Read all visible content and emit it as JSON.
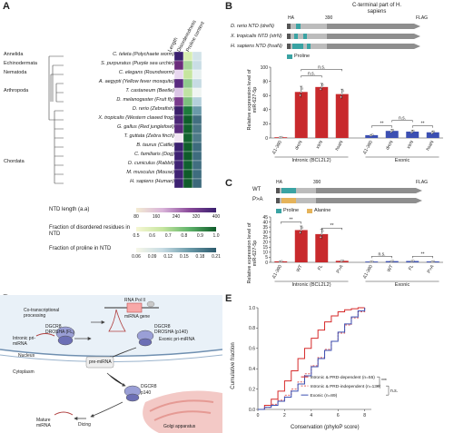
{
  "panels": {
    "A": "A",
    "B": "B",
    "C": "C",
    "D": "D",
    "E": "E"
  },
  "panelA": {
    "col_headers": [
      "Length",
      "Disorderedness",
      "Proline content"
    ],
    "phyla": [
      "Annelida",
      "Echinodermata",
      "Nematoda",
      "Arthropoda",
      "",
      "Chordata"
    ],
    "species": [
      "C. teleta (Polychaete worm)",
      "S. purpuratus (Purple sea urchin)",
      "C. elegans (Roundworm)",
      "A. aegypti (Yellow fever mosquito)",
      "T. castaneum (Beetle)",
      "D. melanogaster (Fruit fly)",
      "D. rerio (Zebrafish)",
      "X. tropicalis (Western clawed frog)",
      "G. gallus (Red junglefowl)",
      "T. guttata (Zebra finch)",
      "B. taurus (Cattle)",
      "C. familiaris (Dog)",
      "O. cuniculus (Rabbit)",
      "M. musculus (Mouse)",
      "H. sapiens (Human)"
    ],
    "heat": {
      "length": [
        "#3a1f6e",
        "#6b2c7c",
        "#e8d7ef",
        "#5a2a80",
        "#dcc6e6",
        "#7a3b8c",
        "#3b1f6a",
        "#4a2675",
        "#5a2b7d",
        "#f2e6f4",
        "#3b2070",
        "#3d2172",
        "#3e2273",
        "#3f2273",
        "#3d2172"
      ],
      "disorder": [
        "#d7edb0",
        "#a7d59a",
        "#c6e59f",
        "#8fca8d",
        "#bfe2a3",
        "#7dbf7e",
        "#1d7a3c",
        "#0f5e2b",
        "#11612d",
        "#136430",
        "#0f5e2b",
        "#0f5b2a",
        "#106030",
        "#0f5b2a",
        "#0f5b2a"
      ],
      "proline": [
        "#d2e3e8",
        "#c9dde5",
        "#e7f0f0",
        "#c6dbe3",
        "#f0f5f2",
        "#b4d0db",
        "#6a9aa9",
        "#426f80",
        "#4a7785",
        "#4d7a88",
        "#3d6b7d",
        "#3e6c7e",
        "#416e80",
        "#3e6c7e",
        "#3c697b"
      ]
    },
    "legend_length_title": "NTD length (a.a)",
    "legend_length_ticks": [
      "80",
      "160",
      "240",
      "320",
      "400"
    ],
    "legend_disorder_title": "Fraction of disordered residues in NTD",
    "legend_disorder_ticks": [
      "0.5",
      "0.6",
      "0.7",
      "0.8",
      "0.9",
      "1.0"
    ],
    "legend_proline_title": "Fraction of proline in NTD",
    "legend_proline_ticks": [
      "0.06",
      "0.09",
      "0.12",
      "0.15",
      "0.18",
      "0.21"
    ]
  },
  "panelB": {
    "header": "C-terminal part of H. sapiens",
    "ha": "HA",
    "flag": "FLAG",
    "tick_390": "390",
    "constructs": [
      "D. rerio NTD (dreN)",
      "X. tropicalis NTD (xtrN)",
      "H. sapiens NTD (hsaN)"
    ],
    "proline_legend": "Proline",
    "ylabel": "Relative expression level of miR-627-5p",
    "yticks": [
      "0",
      "20",
      "40",
      "60",
      "80",
      "100"
    ],
    "groups": [
      "Intronic (BCL2L2)",
      "Exonic"
    ],
    "categories": [
      "Δ1-390",
      "dreN",
      "xtrN",
      "hsaN",
      "Δ1-390",
      "dreN",
      "xtrN",
      "hsaN"
    ],
    "sig": [
      "n.s.",
      "n.s.",
      "**",
      "**",
      "n.s."
    ]
  },
  "panelC": {
    "wt": "WT",
    "pa": "P>A",
    "ha": "HA",
    "flag": "FLAG",
    "tick_390": "390",
    "legend_proline": "Proline",
    "legend_alanine": "Alanine",
    "ylabel": "Relative expression level of miR-627-5p",
    "yticks": [
      "0",
      "5",
      "10",
      "15",
      "20",
      "25",
      "30",
      "35",
      "40",
      "45"
    ],
    "groups": [
      "Intronic (BCL2L2)",
      "Exonic"
    ],
    "categories": [
      "Δ1-390",
      "WT",
      "FL",
      "P>A",
      "Δ1-390",
      "WT",
      "FL",
      "P>A"
    ],
    "sig": [
      "**",
      "**",
      "n.s.",
      "**"
    ]
  },
  "panelD": {
    "labels": {
      "rna_pol": "RNA Pol II",
      "mirna_gene": "miRNA gene",
      "cotrans": "Co-transcriptional processing",
      "dgcr8_top": "DGCR8",
      "drosha_fl": "DROSHA (FL)",
      "dgcr8_right": "DGCR8",
      "drosha_p140": "DROSHA (p140)",
      "intronic": "Intronic pri-miRNA",
      "exonic": "Exonic pri-miRNA",
      "nucleus": "Nucleus",
      "cytoplasm": "Cytoplasm",
      "pre": "pre-miRNA",
      "dgcr8_bottom": "DGCR8",
      "p140": "p140",
      "mature": "Mature miRNA",
      "dicing": "Dicing",
      "golgi": "Golgi apparatus"
    }
  },
  "panelE": {
    "ylabel": "Cumulative fraction",
    "xlabel": "Conservation (phyloP score)",
    "yticks": [
      "0.0",
      "0.2",
      "0.4",
      "0.6",
      "0.8",
      "1.0"
    ],
    "xticks": [
      "0",
      "2",
      "4",
      "6",
      "8"
    ],
    "legend": [
      "Intronic & PRD-dependent (n=55)",
      "Intronic & PRD-independent (n=136)",
      "Exonic (n=89)"
    ],
    "sig": [
      "***",
      "n.s."
    ]
  },
  "chart_data": [
    {
      "type": "bar",
      "title": "",
      "ylabel": "Relative expression level of miR-627-5p",
      "ylim": [
        0,
        100
      ],
      "categories": [
        "Δ1-390",
        "dreN",
        "xtrN",
        "hsaN",
        "Δ1-390",
        "dreN",
        "xtrN",
        "hsaN"
      ],
      "values": [
        1,
        65,
        72,
        62,
        4,
        10,
        9,
        8
      ],
      "errors": [
        0.5,
        8,
        5,
        7,
        1,
        2,
        2,
        2
      ],
      "colors": [
        "#c8292c",
        "#c8292c",
        "#c8292c",
        "#c8292c",
        "#3b4fb2",
        "#3b4fb2",
        "#3b4fb2",
        "#3b4fb2"
      ]
    },
    {
      "type": "bar",
      "title": "",
      "ylabel": "Relative expression level of miR-627-5p",
      "ylim": [
        0,
        45
      ],
      "categories": [
        "Δ1-390",
        "WT",
        "FL",
        "P>A",
        "Δ1-390",
        "WT",
        "FL",
        "P>A"
      ],
      "values": [
        1,
        32,
        28,
        1.5,
        0.8,
        1.2,
        1.3,
        0.9
      ],
      "errors": [
        0.3,
        4,
        5,
        0.5,
        0.3,
        0.3,
        0.4,
        0.3
      ],
      "colors": [
        "#c8292c",
        "#c8292c",
        "#c8292c",
        "#c8292c",
        "#3b4fb2",
        "#3b4fb2",
        "#3b4fb2",
        "#3b4fb2"
      ]
    },
    {
      "type": "line",
      "title": "",
      "xlabel": "Conservation (phyloP score)",
      "ylabel": "Cumulative fraction",
      "xlim": [
        0,
        8.5
      ],
      "ylim": [
        0,
        1
      ],
      "series": [
        {
          "name": "Intronic & PRD-dependent (n=55)",
          "color": "#d62a2a",
          "dash": false,
          "x": [
            0,
            0.5,
            1,
            1.5,
            2,
            2.5,
            3,
            3.5,
            4,
            4.5,
            5,
            5.5,
            6,
            6.5,
            7,
            7.5,
            8
          ],
          "y": [
            0,
            0.04,
            0.1,
            0.18,
            0.28,
            0.38,
            0.5,
            0.6,
            0.7,
            0.78,
            0.86,
            0.92,
            0.96,
            0.98,
            0.99,
            1.0,
            1.0
          ]
        },
        {
          "name": "Intronic & PRD-independent (n=136)",
          "color": "#e06060",
          "dash": true,
          "x": [
            0,
            0.5,
            1,
            1.5,
            2,
            2.5,
            3,
            3.5,
            4,
            4.5,
            5,
            5.5,
            6,
            6.5,
            7,
            7.5,
            8
          ],
          "y": [
            0,
            0.02,
            0.05,
            0.09,
            0.14,
            0.2,
            0.27,
            0.35,
            0.43,
            0.51,
            0.59,
            0.67,
            0.75,
            0.83,
            0.9,
            0.96,
            1.0
          ]
        },
        {
          "name": "Exonic (n=89)",
          "color": "#3b4fb2",
          "dash": false,
          "x": [
            0,
            0.5,
            1,
            1.5,
            2,
            2.5,
            3,
            3.5,
            4,
            4.5,
            5,
            5.5,
            6,
            6.5,
            7,
            7.5,
            8
          ],
          "y": [
            0,
            0.02,
            0.04,
            0.08,
            0.12,
            0.18,
            0.25,
            0.33,
            0.42,
            0.5,
            0.58,
            0.67,
            0.76,
            0.84,
            0.91,
            0.97,
            1.0
          ]
        }
      ]
    }
  ]
}
